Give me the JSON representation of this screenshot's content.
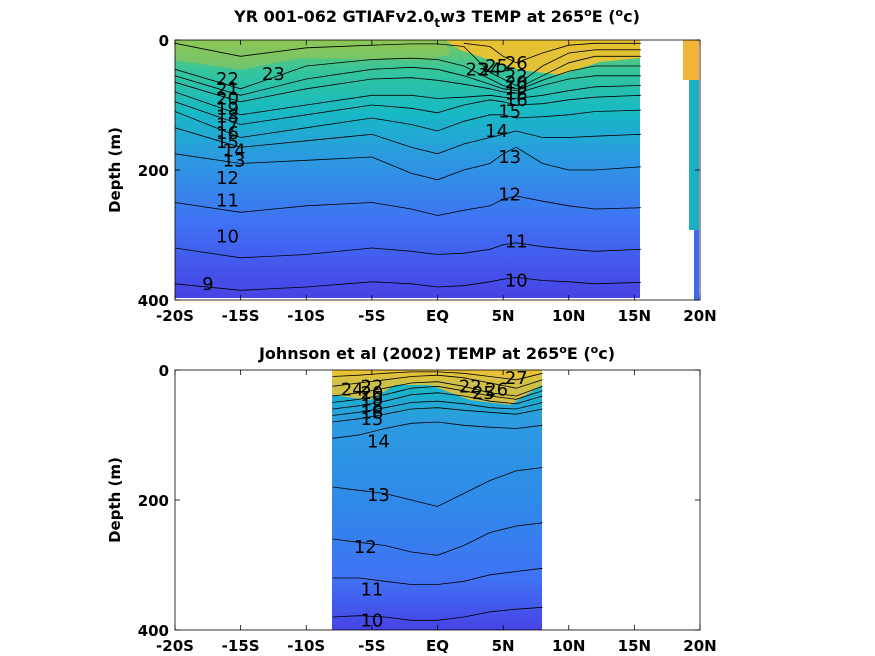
{
  "chart_data": [
    {
      "type": "heatmap",
      "title": "YR 001-062 GTIAFv2.0",
      "title_sub": "t",
      "title_rest": "w3 TEMP at 265",
      "title_sup": "o",
      "title_end": "E (",
      "title_unit_sup": "o",
      "title_unit": "c)",
      "ylabel": "Depth (m)",
      "xlim": [
        -20,
        20
      ],
      "ylim": [
        0,
        400
      ],
      "y_reversed": true,
      "x_ticks": [
        {
          "v": -20,
          "label": "-20S"
        },
        {
          "v": -15,
          "label": "-15S"
        },
        {
          "v": -10,
          "label": "-10S"
        },
        {
          "v": -5,
          "label": "-5S"
        },
        {
          "v": 0,
          "label": "EQ"
        },
        {
          "v": 5,
          "label": "5N"
        },
        {
          "v": 10,
          "label": "10N"
        },
        {
          "v": 15,
          "label": "15N"
        },
        {
          "v": 20,
          "label": "20N"
        }
      ],
      "y_ticks": [
        {
          "v": 0,
          "label": "0"
        },
        {
          "v": 200,
          "label": "200"
        },
        {
          "v": 400,
          "label": "400"
        }
      ],
      "data_extent_x": [
        -20,
        15.5
      ],
      "colormap": [
        "#3e26a8",
        "#4743e4",
        "#3f73f4",
        "#2b9be0",
        "#17b9c4",
        "#34c59c",
        "#7bc860",
        "#bdbf3a",
        "#eec434",
        "#f9d828"
      ],
      "color_range": [
        7,
        28
      ],
      "isotherm_depths": {
        "x": [
          -20,
          -15,
          -10,
          -5,
          -2,
          0,
          2,
          4,
          5,
          6,
          8,
          10,
          12,
          15.5
        ],
        "levels": {
          "26": [
            null,
            null,
            null,
            null,
            null,
            null,
            5,
            10,
            25,
            35,
            20,
            8,
            5,
            5
          ],
          "23": [
            5,
            25,
            12,
            8,
            6,
            6,
            10,
            50,
            60,
            70,
            40,
            20,
            15,
            15
          ],
          "22": [
            45,
            75,
            40,
            30,
            28,
            30,
            40,
            60,
            70,
            75,
            55,
            35,
            25,
            25
          ],
          "20": [
            55,
            85,
            60,
            45,
            42,
            45,
            55,
            68,
            75,
            78,
            62,
            48,
            40,
            40
          ],
          "18": [
            65,
            95,
            75,
            60,
            58,
            62,
            68,
            75,
            80,
            82,
            70,
            60,
            55,
            55
          ],
          "16": [
            80,
            115,
            100,
            85,
            85,
            90,
            88,
            85,
            88,
            90,
            85,
            78,
            72,
            70
          ],
          "15": [
            95,
            130,
            115,
            100,
            105,
            112,
            100,
            92,
            95,
            100,
            98,
            92,
            88,
            85
          ],
          "14": [
            110,
            150,
            135,
            120,
            130,
            140,
            125,
            115,
            115,
            120,
            118,
            115,
            110,
            108
          ],
          "13": [
            135,
            165,
            155,
            145,
            165,
            175,
            160,
            150,
            145,
            140,
            150,
            150,
            148,
            145
          ],
          "12": [
            175,
            190,
            185,
            180,
            205,
            215,
            200,
            190,
            175,
            165,
            190,
            200,
            200,
            195
          ],
          "11": [
            250,
            265,
            255,
            250,
            260,
            270,
            262,
            255,
            245,
            240,
            248,
            255,
            260,
            258
          ],
          "10": [
            320,
            335,
            330,
            320,
            325,
            330,
            328,
            322,
            315,
            312,
            318,
            322,
            325,
            322
          ],
          "9": [
            375,
            385,
            380,
            372,
            375,
            380,
            378,
            372,
            368,
            365,
            370,
            372,
            375,
            373
          ]
        }
      },
      "contour_labels": [
        {
          "x": -16,
          "y": 60,
          "text": "22"
        },
        {
          "x": -16,
          "y": 75,
          "text": "21"
        },
        {
          "x": -16,
          "y": 90,
          "text": "20"
        },
        {
          "x": -16,
          "y": 105,
          "text": "19"
        },
        {
          "x": -16,
          "y": 118,
          "text": "18"
        },
        {
          "x": -16,
          "y": 130,
          "text": "17"
        },
        {
          "x": -16,
          "y": 143,
          "text": "16"
        },
        {
          "x": -16,
          "y": 157,
          "text": "15"
        },
        {
          "x": -15.5,
          "y": 170,
          "text": "14"
        },
        {
          "x": -15.5,
          "y": 185,
          "text": "13"
        },
        {
          "x": -16,
          "y": 212,
          "text": "12"
        },
        {
          "x": -16,
          "y": 247,
          "text": "11"
        },
        {
          "x": -16,
          "y": 302,
          "text": "10"
        },
        {
          "x": -17.5,
          "y": 375,
          "text": "9"
        },
        {
          "x": -12.5,
          "y": 52,
          "text": "23"
        },
        {
          "x": 3,
          "y": 45,
          "text": "23"
        },
        {
          "x": 4,
          "y": 45,
          "text": "24"
        },
        {
          "x": 4.5,
          "y": 40,
          "text": "25"
        },
        {
          "x": 6,
          "y": 35,
          "text": "26"
        },
        {
          "x": 6,
          "y": 55,
          "text": "22"
        },
        {
          "x": 6,
          "y": 65,
          "text": "20"
        },
        {
          "x": 6,
          "y": 73,
          "text": "19"
        },
        {
          "x": 6,
          "y": 82,
          "text": "18"
        },
        {
          "x": 6,
          "y": 92,
          "text": "16"
        },
        {
          "x": 5.5,
          "y": 110,
          "text": "15"
        },
        {
          "x": 4.5,
          "y": 140,
          "text": "14"
        },
        {
          "x": 5.5,
          "y": 180,
          "text": "13"
        },
        {
          "x": 5.5,
          "y": 238,
          "text": "12"
        },
        {
          "x": 6,
          "y": 310,
          "text": "11"
        },
        {
          "x": 6,
          "y": 370,
          "text": "10"
        }
      ]
    },
    {
      "type": "heatmap",
      "title": "Johnson et al (2002) TEMP at 265",
      "title_sup": "o",
      "title_end": "E (",
      "title_unit_sup": "o",
      "title_unit": "c)",
      "ylabel": "Depth (m)",
      "xlim": [
        -20,
        20
      ],
      "ylim": [
        0,
        400
      ],
      "y_reversed": true,
      "x_ticks": [
        {
          "v": -20,
          "label": "-20S"
        },
        {
          "v": -15,
          "label": "-15S"
        },
        {
          "v": -10,
          "label": "-10S"
        },
        {
          "v": -5,
          "label": "-5S"
        },
        {
          "v": 0,
          "label": "EQ"
        },
        {
          "v": 5,
          "label": "5N"
        },
        {
          "v": 10,
          "label": "10N"
        },
        {
          "v": 15,
          "label": "15N"
        },
        {
          "v": 20,
          "label": "20N"
        }
      ],
      "y_ticks": [
        {
          "v": 0,
          "label": "0"
        },
        {
          "v": 200,
          "label": "200"
        },
        {
          "v": 400,
          "label": "400"
        }
      ],
      "data_extent_x": [
        -8,
        8
      ],
      "colormap": [
        "#3e26a8",
        "#4743e4",
        "#3f73f4",
        "#2b9be0",
        "#17b9c4",
        "#34c59c",
        "#7bc860",
        "#bdbf3a",
        "#eec434",
        "#f9d828"
      ],
      "color_range": [
        7,
        28
      ],
      "isotherm_depths": {
        "x": [
          -8,
          -6,
          -4,
          -2,
          0,
          2,
          4,
          6,
          8
        ],
        "levels": {
          "25": [
            10,
            8,
            5,
            3,
            3,
            5,
            10,
            15,
            5
          ],
          "24": [
            25,
            20,
            15,
            10,
            8,
            12,
            20,
            28,
            15
          ],
          "22": [
            40,
            35,
            28,
            20,
            18,
            25,
            35,
            40,
            25
          ],
          "20": [
            50,
            45,
            38,
            28,
            25,
            32,
            40,
            45,
            32
          ],
          "18": [
            60,
            55,
            48,
            38,
            35,
            40,
            48,
            52,
            40
          ],
          "16": [
            70,
            65,
            58,
            50,
            48,
            52,
            58,
            60,
            50
          ],
          "15": [
            80,
            75,
            68,
            60,
            58,
            62,
            65,
            68,
            60
          ],
          "14": [
            105,
            100,
            90,
            82,
            80,
            85,
            88,
            90,
            85
          ],
          "13": [
            180,
            185,
            190,
            200,
            210,
            190,
            170,
            155,
            150
          ],
          "12": [
            260,
            265,
            270,
            280,
            285,
            270,
            250,
            240,
            235
          ],
          "11": [
            320,
            320,
            325,
            330,
            330,
            325,
            315,
            310,
            305
          ],
          "10": [
            380,
            378,
            380,
            385,
            385,
            380,
            372,
            368,
            365
          ]
        }
      },
      "contour_labels": [
        {
          "x": -6.5,
          "y": 30,
          "text": "24"
        },
        {
          "x": -5,
          "y": 25,
          "text": "22"
        },
        {
          "x": -5,
          "y": 35,
          "text": "20"
        },
        {
          "x": -5,
          "y": 45,
          "text": "19"
        },
        {
          "x": -5,
          "y": 55,
          "text": "18"
        },
        {
          "x": -5,
          "y": 65,
          "text": "16"
        },
        {
          "x": -5,
          "y": 75,
          "text": "15"
        },
        {
          "x": -4.5,
          "y": 110,
          "text": "14"
        },
        {
          "x": -4.5,
          "y": 192,
          "text": "13"
        },
        {
          "x": -5.5,
          "y": 272,
          "text": "12"
        },
        {
          "x": -5,
          "y": 338,
          "text": "11"
        },
        {
          "x": -5,
          "y": 385,
          "text": "10"
        },
        {
          "x": 2.5,
          "y": 25,
          "text": "22"
        },
        {
          "x": 3.5,
          "y": 35,
          "text": "25"
        },
        {
          "x": 4.5,
          "y": 30,
          "text": "26"
        },
        {
          "x": 6,
          "y": 12,
          "text": "27"
        }
      ]
    }
  ]
}
